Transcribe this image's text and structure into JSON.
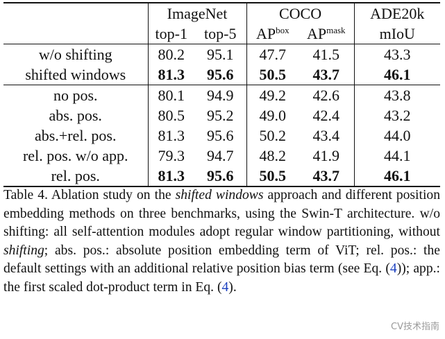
{
  "table": {
    "header": {
      "groups": [
        "ImageNet",
        "COCO",
        "ADE20k"
      ],
      "columns": [
        {
          "text": "top-1"
        },
        {
          "text": "top-5"
        },
        {
          "text": "AP",
          "sup": "box"
        },
        {
          "text": "AP",
          "sup": "mask"
        },
        {
          "text": "mIoU"
        }
      ]
    },
    "sections": [
      [
        {
          "label": "w/o shifting",
          "cells": [
            "80.2",
            "95.1",
            "47.7",
            "41.5",
            "43.3"
          ],
          "bold": false
        },
        {
          "label": "shifted windows",
          "cells": [
            "81.3",
            "95.6",
            "50.5",
            "43.7",
            "46.1"
          ],
          "bold": true
        }
      ],
      [
        {
          "label": "no pos.",
          "cells": [
            "80.1",
            "94.9",
            "49.2",
            "42.6",
            "43.8"
          ],
          "bold": false
        },
        {
          "label": "abs. pos.",
          "cells": [
            "80.5",
            "95.2",
            "49.0",
            "42.4",
            "43.2"
          ],
          "bold": false
        },
        {
          "label": "abs.+rel. pos.",
          "cells": [
            "81.3",
            "95.6",
            "50.2",
            "43.4",
            "44.0"
          ],
          "bold": false
        },
        {
          "label": "rel. pos. w/o app.",
          "cells": [
            "79.3",
            "94.7",
            "48.2",
            "41.9",
            "44.1"
          ],
          "bold": false
        },
        {
          "label": "rel. pos.",
          "cells": [
            "81.3",
            "95.6",
            "50.5",
            "43.7",
            "46.1"
          ],
          "bold": true
        }
      ]
    ]
  },
  "caption": [
    {
      "text": "Table 4. Ablation study on the ",
      "style": "normal"
    },
    {
      "text": "shifted windows",
      "style": "italic"
    },
    {
      "text": " approach and different position embedding methods on three benchmarks, using the Swin-T architecture.  w/o shifting: all self-attention modules adopt regular window partitioning, without ",
      "style": "normal"
    },
    {
      "text": "shifting",
      "style": "italic"
    },
    {
      "text": "; abs. pos.: absolute position embedding term of ViT; rel. pos.: the default settings with an additional relative position bias term (see Eq. (",
      "style": "normal"
    },
    {
      "text": "4",
      "style": "link"
    },
    {
      "text": ")); app.: the first scaled dot-product term in Eq. (",
      "style": "normal"
    },
    {
      "text": "4",
      "style": "link"
    },
    {
      "text": ").",
      "style": "normal"
    }
  ],
  "watermark": "CV技术指南"
}
